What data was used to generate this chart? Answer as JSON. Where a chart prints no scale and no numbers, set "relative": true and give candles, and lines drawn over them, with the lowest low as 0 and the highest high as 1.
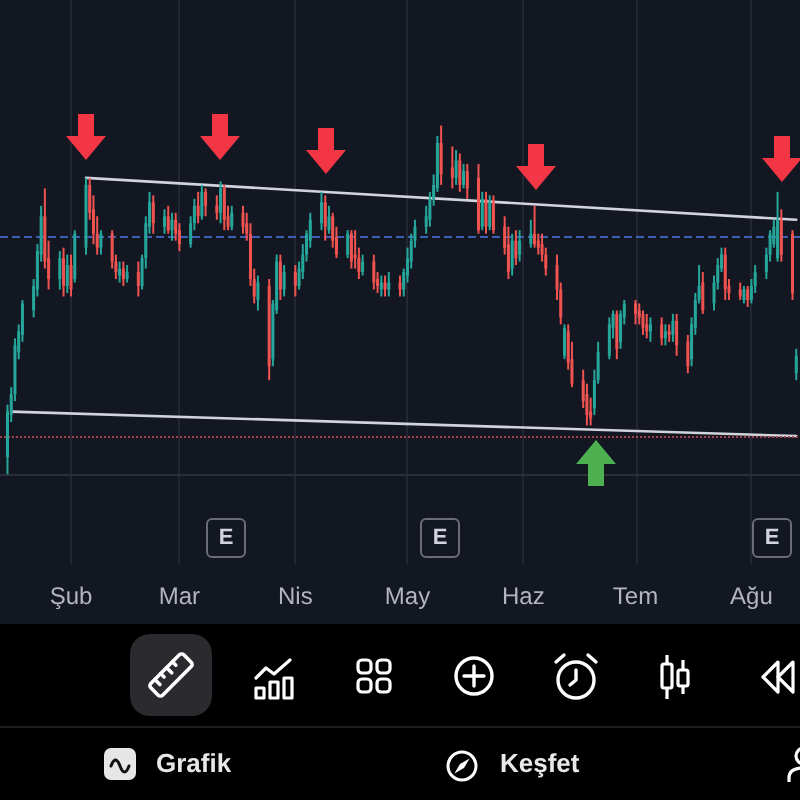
{
  "chart_data": {
    "type": "candlestick",
    "relative": true,
    "grid": "x",
    "x": [
      "--01-15",
      "--01-16",
      "--01-17",
      "--01-18",
      "--01-19",
      "--01-22",
      "--01-23",
      "--01-24",
      "--01-25",
      "--01-26",
      "--01-29",
      "--01-30",
      "--01-31",
      "--02-01",
      "--02-02",
      "--02-05",
      "--02-06",
      "--02-07",
      "--02-08",
      "--02-09",
      "--02-12",
      "--02-13",
      "--02-14",
      "--02-15",
      "--02-16",
      "--02-19",
      "--02-20",
      "--02-21",
      "--02-22",
      "--02-23",
      "--02-26",
      "--02-27",
      "--02-28",
      "--02-29",
      "--03-01",
      "--03-04",
      "--03-05",
      "--03-06",
      "--03-07",
      "--03-08",
      "--03-11",
      "--03-12",
      "--03-13",
      "--03-14",
      "--03-15",
      "--03-18",
      "--03-19",
      "--03-20",
      "--03-21",
      "--03-22",
      "--03-25",
      "--03-26",
      "--03-27",
      "--03-28",
      "--03-29",
      "--04-01",
      "--04-02",
      "--04-03",
      "--04-04",
      "--04-05",
      "--04-08",
      "--04-09",
      "--04-10",
      "--04-11",
      "--04-12",
      "--04-15",
      "--04-16",
      "--04-17",
      "--04-18",
      "--04-19",
      "--04-22",
      "--04-23",
      "--04-24",
      "--04-25",
      "--04-26",
      "--04-29",
      "--04-30",
      "--05-01",
      "--05-02",
      "--05-03",
      "--05-06",
      "--05-07",
      "--05-08",
      "--05-09",
      "--05-10",
      "--05-13",
      "--05-14",
      "--05-15",
      "--05-16",
      "--05-17",
      "--05-20",
      "--05-21",
      "--05-22",
      "--05-23",
      "--05-24",
      "--05-27",
      "--05-28",
      "--05-29",
      "--05-30",
      "--05-31",
      "--06-03",
      "--06-04",
      "--06-05",
      "--06-06",
      "--06-07",
      "--06-10",
      "--06-11",
      "--06-12",
      "--06-13",
      "--06-14",
      "--06-17",
      "--06-18",
      "--06-19",
      "--06-20",
      "--06-21",
      "--06-24",
      "--06-25",
      "--06-26",
      "--06-27",
      "--06-28",
      "--07-01",
      "--07-02",
      "--07-03",
      "--07-04",
      "--07-05",
      "--07-08",
      "--07-09",
      "--07-10",
      "--07-11",
      "--07-12",
      "--07-15",
      "--07-16",
      "--07-17",
      "--07-18",
      "--07-19",
      "--07-22",
      "--07-23",
      "--07-24",
      "--07-25",
      "--07-26",
      "--07-29",
      "--07-30",
      "--07-31",
      "--08-01",
      "--08-02",
      "--08-05",
      "--08-06",
      "--08-07",
      "--08-08",
      "--08-09",
      "--08-12",
      "--08-13"
    ],
    "ohlc": [
      [
        0.05,
        0.2,
        0,
        0.18
      ],
      [
        0.17,
        0.25,
        0.15,
        0.23
      ],
      [
        0.23,
        0.39,
        0.21,
        0.37
      ],
      [
        0.35,
        0.43,
        0.33,
        0.41
      ],
      [
        0.4,
        0.5,
        0.38,
        0.49
      ],
      [
        0.47,
        0.56,
        0.45,
        0.54
      ],
      [
        0.53,
        0.66,
        0.51,
        0.64
      ],
      [
        0.63,
        0.77,
        0.61,
        0.74
      ],
      [
        0.74,
        0.82,
        0.59,
        0.61
      ],
      [
        0.62,
        0.67,
        0.53,
        0.56
      ],
      [
        0.56,
        0.64,
        0.53,
        0.62
      ],
      [
        0.62,
        0.65,
        0.51,
        0.54
      ],
      [
        0.54,
        0.63,
        0.52,
        0.6
      ],
      [
        0.6,
        0.63,
        0.51,
        0.53
      ],
      [
        0.56,
        0.7,
        0.55,
        0.69
      ],
      [
        0.65,
        0.85,
        0.63,
        0.83
      ],
      [
        0.83,
        0.85,
        0.73,
        0.75
      ],
      [
        0.76,
        0.8,
        0.66,
        0.69
      ],
      [
        0.69,
        0.74,
        0.63,
        0.65
      ],
      [
        0.65,
        0.7,
        0.63,
        0.69
      ],
      [
        0.69,
        0.7,
        0.59,
        0.61
      ],
      [
        0.61,
        0.63,
        0.56,
        0.58
      ],
      [
        0.57,
        0.61,
        0.55,
        0.59
      ],
      [
        0.59,
        0.61,
        0.54,
        0.56
      ],
      [
        0.56,
        0.6,
        0.55,
        0.58
      ],
      [
        0.58,
        0.61,
        0.51,
        0.54
      ],
      [
        0.54,
        0.63,
        0.53,
        0.62
      ],
      [
        0.62,
        0.74,
        0.59,
        0.72
      ],
      [
        0.71,
        0.81,
        0.69,
        0.78
      ],
      [
        0.78,
        0.8,
        0.69,
        0.72
      ],
      [
        0.71,
        0.76,
        0.69,
        0.74
      ],
      [
        0.74,
        0.77,
        0.69,
        0.7
      ],
      [
        0.7,
        0.75,
        0.67,
        0.73
      ],
      [
        0.73,
        0.75,
        0.67,
        0.69
      ],
      [
        0.7,
        0.72,
        0.64,
        0.66
      ],
      [
        0.66,
        0.74,
        0.65,
        0.72
      ],
      [
        0.72,
        0.79,
        0.7,
        0.77
      ],
      [
        0.77,
        0.81,
        0.72,
        0.74
      ],
      [
        0.74,
        0.83,
        0.73,
        0.81
      ],
      [
        0.81,
        0.82,
        0.74,
        0.77
      ],
      [
        0.77,
        0.8,
        0.73,
        0.75
      ],
      [
        0.75,
        0.84,
        0.72,
        0.82
      ],
      [
        0.82,
        0.83,
        0.7,
        0.73
      ],
      [
        0.74,
        0.77,
        0.7,
        0.71
      ],
      [
        0.71,
        0.77,
        0.7,
        0.75
      ],
      [
        0.75,
        0.77,
        0.69,
        0.71
      ],
      [
        0.72,
        0.75,
        0.67,
        0.69
      ],
      [
        0.69,
        0.72,
        0.54,
        0.56
      ],
      [
        0.56,
        0.59,
        0.49,
        0.51
      ],
      [
        0.5,
        0.57,
        0.47,
        0.55
      ],
      [
        0.54,
        0.56,
        0.27,
        0.31
      ],
      [
        0.33,
        0.5,
        0.31,
        0.49
      ],
      [
        0.47,
        0.63,
        0.46,
        0.61
      ],
      [
        0.61,
        0.63,
        0.5,
        0.53
      ],
      [
        0.53,
        0.6,
        0.51,
        0.58
      ],
      [
        0.58,
        0.6,
        0.51,
        0.54
      ],
      [
        0.54,
        0.61,
        0.53,
        0.59
      ],
      [
        0.58,
        0.66,
        0.56,
        0.63
      ],
      [
        0.63,
        0.7,
        0.61,
        0.69
      ],
      [
        0.67,
        0.75,
        0.65,
        0.73
      ],
      [
        0.72,
        0.81,
        0.7,
        0.78
      ],
      [
        0.78,
        0.8,
        0.67,
        0.71
      ],
      [
        0.7,
        0.77,
        0.69,
        0.74
      ],
      [
        0.74,
        0.75,
        0.65,
        0.67
      ],
      [
        0.68,
        0.71,
        0.62,
        0.63
      ],
      [
        0.63,
        0.7,
        0.62,
        0.69
      ],
      [
        0.69,
        0.7,
        0.59,
        0.61
      ],
      [
        0.63,
        0.7,
        0.59,
        0.62
      ],
      [
        0.62,
        0.65,
        0.56,
        0.58
      ],
      [
        0.58,
        0.63,
        0.57,
        0.61
      ],
      [
        0.61,
        0.63,
        0.53,
        0.55
      ],
      [
        0.56,
        0.58,
        0.52,
        0.54
      ],
      [
        0.53,
        0.57,
        0.51,
        0.55
      ],
      [
        0.55,
        0.57,
        0.51,
        0.53
      ],
      [
        0.53,
        0.58,
        0.51,
        0.55
      ],
      [
        0.55,
        0.57,
        0.51,
        0.53
      ],
      [
        0.53,
        0.59,
        0.51,
        0.58
      ],
      [
        0.57,
        0.65,
        0.55,
        0.62
      ],
      [
        0.61,
        0.69,
        0.59,
        0.67
      ],
      [
        0.67,
        0.73,
        0.65,
        0.71
      ],
      [
        0.71,
        0.77,
        0.69,
        0.74
      ],
      [
        0.73,
        0.81,
        0.71,
        0.79
      ],
      [
        0.79,
        0.86,
        0.77,
        0.83
      ],
      [
        0.82,
        0.97,
        0.81,
        0.95
      ],
      [
        0.95,
        1,
        0.83,
        0.86
      ],
      [
        0.88,
        0.94,
        0.82,
        0.85
      ],
      [
        0.85,
        0.93,
        0.83,
        0.9
      ],
      [
        0.9,
        0.92,
        0.81,
        0.83
      ],
      [
        0.83,
        0.89,
        0.82,
        0.87
      ],
      [
        0.87,
        0.89,
        0.79,
        0.82
      ],
      [
        0.85,
        0.89,
        0.69,
        0.7
      ],
      [
        0.71,
        0.81,
        0.7,
        0.79
      ],
      [
        0.79,
        0.81,
        0.69,
        0.71
      ],
      [
        0.71,
        0.8,
        0.7,
        0.78
      ],
      [
        0.78,
        0.8,
        0.69,
        0.7
      ],
      [
        0.71,
        0.74,
        0.63,
        0.65
      ],
      [
        0.66,
        0.71,
        0.56,
        0.58
      ],
      [
        0.59,
        0.69,
        0.57,
        0.67
      ],
      [
        0.67,
        0.7,
        0.6,
        0.62
      ],
      [
        0.63,
        0.7,
        0.61,
        0.67
      ],
      [
        0.66,
        0.73,
        0.65,
        0.69
      ],
      [
        0.69,
        0.77,
        0.65,
        0.66
      ],
      [
        0.67,
        0.69,
        0.63,
        0.65
      ],
      [
        0.66,
        0.69,
        0.61,
        0.63
      ],
      [
        0.63,
        0.65,
        0.57,
        0.59
      ],
      [
        0.6,
        0.63,
        0.5,
        0.53
      ],
      [
        0.53,
        0.55,
        0.43,
        0.45
      ],
      [
        0.34,
        0.43,
        0.33,
        0.42
      ],
      [
        0.41,
        0.43,
        0.3,
        0.32
      ],
      [
        0.33,
        0.38,
        0.25,
        0.26
      ],
      [
        0.27,
        0.3,
        0.19,
        0.21
      ],
      [
        0.23,
        0.26,
        0.14,
        0.17
      ],
      [
        0.18,
        0.22,
        0.14,
        0.16
      ],
      [
        0.19,
        0.3,
        0.17,
        0.27
      ],
      [
        0.27,
        0.38,
        0.26,
        0.35
      ],
      [
        0.34,
        0.45,
        0.33,
        0.43
      ],
      [
        0.42,
        0.47,
        0.39,
        0.46
      ],
      [
        0.46,
        0.47,
        0.33,
        0.36
      ],
      [
        0.38,
        0.47,
        0.36,
        0.46
      ],
      [
        0.45,
        0.5,
        0.43,
        0.49
      ],
      [
        0.49,
        0.5,
        0.43,
        0.46
      ],
      [
        0.47,
        0.49,
        0.43,
        0.45
      ],
      [
        0.46,
        0.47,
        0.4,
        0.42
      ],
      [
        0.43,
        0.46,
        0.39,
        0.41
      ],
      [
        0.41,
        0.45,
        0.38,
        0.43
      ],
      [
        0.43,
        0.45,
        0.37,
        0.39
      ],
      [
        0.39,
        0.43,
        0.37,
        0.41
      ],
      [
        0.41,
        0.43,
        0.38,
        0.4
      ],
      [
        0.4,
        0.46,
        0.38,
        0.44
      ],
      [
        0.44,
        0.46,
        0.34,
        0.37
      ],
      [
        0.38,
        0.4,
        0.29,
        0.31
      ],
      [
        0.33,
        0.45,
        0.31,
        0.43
      ],
      [
        0.42,
        0.52,
        0.4,
        0.5
      ],
      [
        0.5,
        0.6,
        0.49,
        0.54
      ],
      [
        0.55,
        0.58,
        0.46,
        0.47
      ],
      [
        0.49,
        0.57,
        0.47,
        0.55
      ],
      [
        0.55,
        0.62,
        0.53,
        0.6
      ],
      [
        0.59,
        0.65,
        0.58,
        0.63
      ],
      [
        0.63,
        0.65,
        0.5,
        0.53
      ],
      [
        0.54,
        0.56,
        0.5,
        0.52
      ],
      [
        0.53,
        0.55,
        0.5,
        0.51
      ],
      [
        0.5,
        0.54,
        0.49,
        0.53
      ],
      [
        0.53,
        0.54,
        0.48,
        0.5
      ],
      [
        0.5,
        0.56,
        0.49,
        0.54
      ],
      [
        0.54,
        0.6,
        0.52,
        0.58
      ],
      [
        0.58,
        0.65,
        0.56,
        0.63
      ],
      [
        0.63,
        0.7,
        0.61,
        0.69
      ],
      [
        0.66,
        0.73,
        0.65,
        0.71
      ],
      [
        0.62,
        0.81,
        0.61,
        0.73
      ],
      [
        0.73,
        0.76,
        0.61,
        0.63
      ],
      [
        0.69,
        0.7,
        0.5,
        0.52
      ],
      [
        0.29,
        0.36,
        0.27,
        0.34
      ]
    ],
    "xlim": [
      "--01-13",
      "--08-14"
    ],
    "xticks": [
      {
        "value": "--02-01",
        "label": "Şub"
      },
      {
        "value": "--03-01",
        "label": "Mar"
      },
      {
        "value": "--04-01",
        "label": "Nis"
      },
      {
        "value": "--05-01",
        "label": "May"
      },
      {
        "value": "--06-01",
        "label": "Haz"
      },
      {
        "value": "--07-01",
        "label": "Tem"
      },
      {
        "value": "--08-01",
        "label": "Ağu"
      }
    ],
    "series": [
      {
        "type": "line",
        "color": "#d1d4dc",
        "x": [
          "--02-05",
          "--08-13"
        ],
        "values": [
          0.85,
          0.73
        ]
      },
      {
        "type": "line",
        "color": "#d1d4dc",
        "x": [
          "--01-16",
          "--08-13"
        ],
        "values": [
          0.18,
          0.11
        ]
      }
    ],
    "ref_lines": [
      {
        "axis": "y",
        "value": 0.68,
        "color": "#3f5fb5",
        "line_style": "dashed"
      },
      {
        "axis": "y",
        "value": 0.11,
        "color": "#a5424d",
        "line_style": "dotted"
      }
    ],
    "annotations": [
      "E",
      "E",
      "E",
      "Grafik",
      "Keşfet"
    ]
  }
}
